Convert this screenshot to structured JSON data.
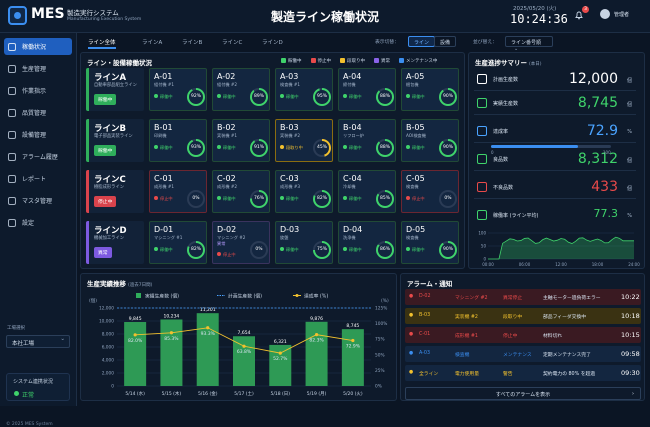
{
  "header": {
    "logo": "MES",
    "system_jp": "製造実行システム",
    "system_en": "Manufacturing Execution System",
    "title": "製造ライン稼働状況",
    "date": "2025/05/20 (火)",
    "time": "10:24:36",
    "notifications": "3",
    "user": "管理者"
  },
  "sidebar": {
    "items": [
      {
        "label": "稼働状況",
        "icon": "monitor-icon"
      },
      {
        "label": "生産管理",
        "icon": "clipboard-icon"
      },
      {
        "label": "作業指示",
        "icon": "document-icon"
      },
      {
        "label": "品質管理",
        "icon": "shield-icon"
      },
      {
        "label": "設備管理",
        "icon": "gear-icon"
      },
      {
        "label": "アラーム履歴",
        "icon": "bell-icon"
      },
      {
        "label": "レポート",
        "icon": "chart-icon"
      },
      {
        "label": "マスタ管理",
        "icon": "database-icon"
      },
      {
        "label": "設定",
        "icon": "settings-icon"
      }
    ],
    "factory_label": "工場選択",
    "factory": "本社工場",
    "conn_title": "システム連携状況",
    "conn_status": "正常",
    "copyright": "© 2025 MES System"
  },
  "toolbar": {
    "tabs": [
      "ライン全体",
      "ラインA",
      "ラインB",
      "ラインC",
      "ラインD"
    ],
    "display_label": "表示切替：",
    "display_opts": [
      "ライン",
      "設備"
    ],
    "sort_label": "並び替え：",
    "sort_value": "ライン番号順"
  },
  "lines_panel": {
    "title": "ライン・設備稼働状況",
    "legend": [
      {
        "label": "稼働中",
        "color": "#3fd36b"
      },
      {
        "label": "停止中",
        "color": "#e84a4a"
      },
      {
        "label": "段取り中",
        "color": "#f2c12e"
      },
      {
        "label": "異常",
        "color": "#8a63e8"
      },
      {
        "label": "メンテナンス中",
        "color": "#3b8ef0"
      }
    ],
    "lines": [
      {
        "name": "ラインA",
        "sub": "自動車部品組立ライン",
        "status": "稼働中",
        "color": "#2fae5b",
        "machines": [
          {
            "id": "A-01",
            "name": "組付機 #1",
            "status": "稼働中",
            "sc": "#3fd36b",
            "rate": 92,
            "card": "g"
          },
          {
            "id": "A-02",
            "name": "組付機 #2",
            "status": "稼働中",
            "sc": "#3fd36b",
            "rate": 89,
            "card": "g"
          },
          {
            "id": "A-03",
            "name": "検査機 #1",
            "status": "稼働中",
            "sc": "#3fd36b",
            "rate": 95,
            "card": "g"
          },
          {
            "id": "A-04",
            "name": "締付機",
            "status": "稼働中",
            "sc": "#3fd36b",
            "rate": 88,
            "card": "g"
          },
          {
            "id": "A-05",
            "name": "梱包機",
            "status": "稼働中",
            "sc": "#3fd36b",
            "rate": 90,
            "card": "g"
          }
        ]
      },
      {
        "name": "ラインB",
        "sub": "電子部品実装ライン",
        "status": "稼働中",
        "color": "#2fae5b",
        "machines": [
          {
            "id": "B-01",
            "name": "印刷機",
            "status": "稼働中",
            "sc": "#3fd36b",
            "rate": 93,
            "card": "g"
          },
          {
            "id": "B-02",
            "name": "実装機 #1",
            "status": "稼働中",
            "sc": "#3fd36b",
            "rate": 91,
            "card": "g"
          },
          {
            "id": "B-03",
            "name": "実装機 #2",
            "status": "段取り中",
            "sc": "#f2c12e",
            "rate": 45,
            "card": "y"
          },
          {
            "id": "B-04",
            "name": "リフロー炉",
            "status": "稼働中",
            "sc": "#3fd36b",
            "rate": 88,
            "card": "g"
          },
          {
            "id": "B-05",
            "name": "AOI検査機",
            "status": "稼働中",
            "sc": "#3fd36b",
            "rate": 90,
            "card": "g"
          }
        ]
      },
      {
        "name": "ラインC",
        "sub": "樹脂成形ライン",
        "status": "停止中",
        "color": "#d9434c",
        "machines": [
          {
            "id": "C-01",
            "name": "成形機 #1",
            "status": "停止中",
            "sc": "#e84a4a",
            "rate": 0,
            "card": "r"
          },
          {
            "id": "C-02",
            "name": "成形機 #2",
            "status": "稼働中",
            "sc": "#3fd36b",
            "rate": 76,
            "card": "g"
          },
          {
            "id": "C-03",
            "name": "成形機 #3",
            "status": "稼働中",
            "sc": "#3fd36b",
            "rate": 82,
            "card": "g"
          },
          {
            "id": "C-04",
            "name": "冷却機",
            "status": "稼働中",
            "sc": "#3fd36b",
            "rate": 85,
            "card": "g"
          },
          {
            "id": "C-05",
            "name": "検査機",
            "status": "停止中",
            "sc": "#e84a4a",
            "rate": 0,
            "card": "r"
          }
        ]
      },
      {
        "name": "ラインD",
        "sub": "機械加工ライン",
        "status": "異常",
        "color": "#7d5ae0",
        "machines": [
          {
            "id": "D-01",
            "name": "マシニング #1",
            "status": "稼働中",
            "sc": "#3fd36b",
            "rate": 82,
            "card": "g"
          },
          {
            "id": "D-02",
            "name": "マシニング #2",
            "status": "停止中",
            "sc": "#e84a4a",
            "rate": 0,
            "card": "p",
            "extra": "異常"
          },
          {
            "id": "D-03",
            "name": "旋盤",
            "status": "稼働中",
            "sc": "#3fd36b",
            "rate": 75,
            "card": "g"
          },
          {
            "id": "D-04",
            "name": "洗浄機",
            "status": "稼働中",
            "sc": "#3fd36b",
            "rate": 86,
            "card": "g"
          },
          {
            "id": "D-05",
            "name": "検査機",
            "status": "稼働中",
            "sc": "#3fd36b",
            "rate": 90,
            "card": "g"
          }
        ]
      }
    ]
  },
  "summary": {
    "title": "生産進捗サマリー",
    "period": "(本日)",
    "rows": [
      {
        "label": "計画生産数",
        "value": "12,000",
        "unit": "個",
        "color": "#ffffff",
        "icon": "calendar-icon"
      },
      {
        "label": "実績生産数",
        "value": "8,745",
        "unit": "個",
        "color": "#3fd36b",
        "icon": "box-icon"
      },
      {
        "label": "達成率",
        "value": "72.9",
        "unit": "%",
        "color": "#4aa3ff",
        "icon": "target-icon"
      },
      {
        "label": "良品数",
        "value": "8,312",
        "unit": "個",
        "color": "#3fd36b",
        "icon": "thumbs-up-icon"
      },
      {
        "label": "不良品数",
        "value": "433",
        "unit": "個",
        "color": "#e84a4a",
        "icon": "x-icon"
      },
      {
        "label": "稼働率 (ライン平均)",
        "value": "77.3",
        "unit": "%",
        "color": "#3fd36b",
        "icon": "activity-icon"
      }
    ],
    "progress_scale": [
      "0",
      "100"
    ],
    "mini_y": [
      "100",
      "50",
      "0"
    ],
    "mini_x": [
      "00:00",
      "06:00",
      "12:00",
      "18:00",
      "24:00"
    ]
  },
  "trend": {
    "title": "生産実績推移",
    "period": "(過去7日間)",
    "legend": [
      "実績生産数 (個)",
      "計画生産数 (個)",
      "達成率 (%)"
    ],
    "y_left_unit": "(個)",
    "y_right_unit": "(%)"
  },
  "chart_data": {
    "type": "bar",
    "categories": [
      "5/14 (水)",
      "5/15 (木)",
      "5/16 (金)",
      "5/17 (土)",
      "5/18 (日)",
      "5/19 (月)",
      "5/20 (火)"
    ],
    "series": [
      {
        "name": "実績生産数 (個)",
        "values": [
          9845,
          10234,
          11201,
          7654,
          6321,
          9876,
          8745
        ]
      },
      {
        "name": "計画生産数 (個)",
        "values": [
          12000,
          12000,
          12000,
          12000,
          12000,
          12000,
          12000
        ]
      },
      {
        "name": "達成率 (%)",
        "values": [
          82.0,
          85.3,
          93.3,
          63.8,
          52.7,
          82.3,
          72.9
        ]
      }
    ],
    "ylim": [
      0,
      12000
    ],
    "y2lim": [
      0,
      125
    ],
    "yticks": [
      "0",
      "2,000",
      "4,000",
      "6,000",
      "8,000",
      "10,000",
      "12,000"
    ],
    "y2ticks": [
      "0%",
      "25%",
      "50%",
      "75%",
      "100%",
      "125%"
    ]
  },
  "alarms": {
    "title": "アラーム・通知",
    "items": [
      {
        "id": "D-02",
        "machine": "マシニング #2",
        "type": "異常停止",
        "msg": "主軸モーター過負荷エラー",
        "time": "10:22",
        "color": "#e84a4a",
        "bg": "#3a1a22"
      },
      {
        "id": "B-03",
        "machine": "実装機 #2",
        "type": "段取り中",
        "msg": "部品フィーダ交換中",
        "time": "10:18",
        "color": "#f2c12e",
        "bg": "#3a3212"
      },
      {
        "id": "C-01",
        "machine": "成形機 #1",
        "type": "停止中",
        "msg": "材料切れ",
        "time": "10:15",
        "color": "#e84a4a",
        "bg": "#3a1a22"
      },
      {
        "id": "A-03",
        "machine": "検査機",
        "type": "メンテナンス",
        "msg": "定期メンテナンス完了",
        "time": "09:58",
        "color": "#3b8ef0",
        "bg": "#132640"
      },
      {
        "id": "全ライン",
        "machine": "電力使用量",
        "type": "警告",
        "msg": "契約電力の 80% を超過",
        "time": "09:30",
        "color": "#f2c12e",
        "bg": "#132640"
      }
    ],
    "view_all": "すべてのアラームを表示"
  }
}
